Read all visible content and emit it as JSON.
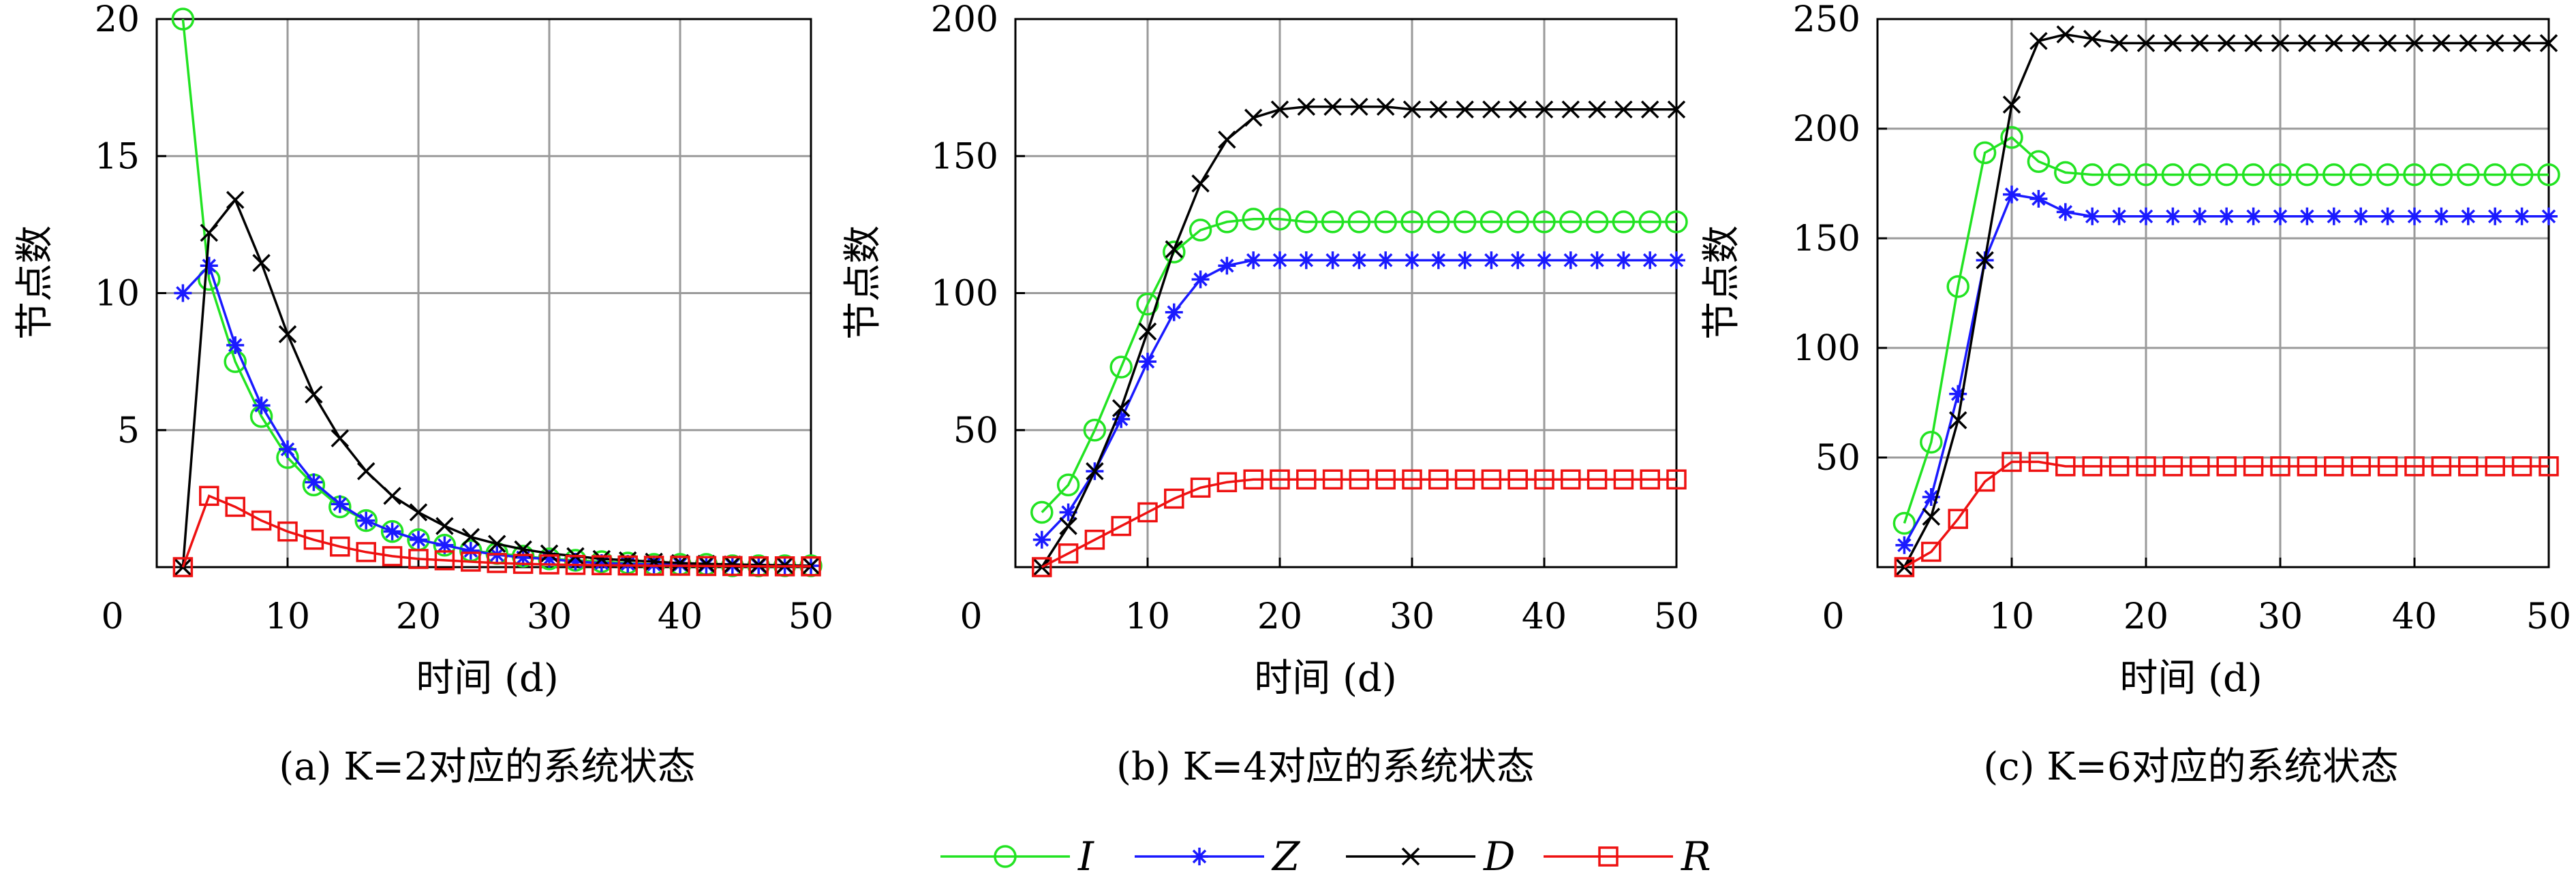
{
  "legend": [
    {
      "label": "I",
      "color": "#22e322",
      "marker": "circle"
    },
    {
      "label": "Z",
      "color": "#1a1aff",
      "marker": "asterisk"
    },
    {
      "label": "D",
      "color": "#000000",
      "marker": "x"
    },
    {
      "label": "R",
      "color": "#ee1111",
      "marker": "square"
    }
  ],
  "chart_data": [
    {
      "type": "line",
      "caption": "(a) K=2对应的系统状态",
      "xlabel": "时间 (d)",
      "ylabel": "节点数",
      "xlim": [
        0,
        50
      ],
      "ylim": [
        0,
        20
      ],
      "xticks": [
        "0",
        "10",
        "20",
        "30",
        "40",
        "50"
      ],
      "yticks": [
        "5",
        "10",
        "15",
        "20"
      ],
      "grid": true,
      "x": [
        2,
        4,
        6,
        8,
        10,
        12,
        14,
        16,
        18,
        20,
        22,
        24,
        26,
        28,
        30,
        32,
        34,
        36,
        38,
        40,
        42,
        44,
        46,
        48,
        50
      ],
      "series": [
        {
          "name": "I",
          "values": [
            20,
            10.5,
            7.5,
            5.5,
            4.0,
            3.0,
            2.2,
            1.7,
            1.3,
            1.0,
            0.8,
            0.6,
            0.5,
            0.4,
            0.3,
            0.25,
            0.2,
            0.15,
            0.1,
            0.1,
            0.1,
            0.05,
            0.05,
            0.05,
            0.05
          ]
        },
        {
          "name": "Z",
          "values": [
            10,
            11,
            8.1,
            5.9,
            4.3,
            3.1,
            2.3,
            1.7,
            1.3,
            1.0,
            0.8,
            0.6,
            0.45,
            0.35,
            0.3,
            0.2,
            0.15,
            0.12,
            0.1,
            0.1,
            0.08,
            0.06,
            0.05,
            0.05,
            0.05
          ]
        },
        {
          "name": "D",
          "values": [
            0,
            12.2,
            13.4,
            11.1,
            8.5,
            6.3,
            4.7,
            3.5,
            2.6,
            2.0,
            1.5,
            1.1,
            0.85,
            0.65,
            0.5,
            0.4,
            0.3,
            0.25,
            0.2,
            0.15,
            0.12,
            0.1,
            0.08,
            0.07,
            0.05
          ]
        },
        {
          "name": "R",
          "values": [
            0,
            2.6,
            2.2,
            1.7,
            1.3,
            1.0,
            0.75,
            0.55,
            0.4,
            0.3,
            0.25,
            0.2,
            0.15,
            0.12,
            0.1,
            0.08,
            0.07,
            0.06,
            0.05,
            0.05,
            0.04,
            0.04,
            0.03,
            0.03,
            0.03
          ]
        }
      ]
    },
    {
      "type": "line",
      "caption": "(b) K=4对应的系统状态",
      "xlabel": "时间 (d)",
      "ylabel": "节点数",
      "xlim": [
        0,
        50
      ],
      "ylim": [
        0,
        200
      ],
      "xticks": [
        "0",
        "10",
        "20",
        "30",
        "40",
        "50"
      ],
      "yticks": [
        "50",
        "100",
        "150",
        "200"
      ],
      "grid": true,
      "x": [
        2,
        4,
        6,
        8,
        10,
        12,
        14,
        16,
        18,
        20,
        22,
        24,
        26,
        28,
        30,
        32,
        34,
        36,
        38,
        40,
        42,
        44,
        46,
        48,
        50
      ],
      "series": [
        {
          "name": "I",
          "values": [
            20,
            30,
            50,
            73,
            96,
            115,
            123,
            126,
            127,
            127,
            126,
            126,
            126,
            126,
            126,
            126,
            126,
            126,
            126,
            126,
            126,
            126,
            126,
            126,
            126
          ]
        },
        {
          "name": "Z",
          "values": [
            10,
            20,
            35,
            54,
            75,
            93,
            105,
            110,
            112,
            112,
            112,
            112,
            112,
            112,
            112,
            112,
            112,
            112,
            112,
            112,
            112,
            112,
            112,
            112,
            112
          ]
        },
        {
          "name": "D",
          "values": [
            0,
            15,
            35,
            58,
            86,
            116,
            140,
            156,
            164,
            167,
            168,
            168,
            168,
            168,
            167,
            167,
            167,
            167,
            167,
            167,
            167,
            167,
            167,
            167,
            167
          ]
        },
        {
          "name": "R",
          "values": [
            0,
            5,
            10,
            15,
            20,
            25,
            29,
            31,
            32,
            32,
            32,
            32,
            32,
            32,
            32,
            32,
            32,
            32,
            32,
            32,
            32,
            32,
            32,
            32,
            32
          ]
        }
      ]
    },
    {
      "type": "line",
      "caption": "(c) K=6对应的系统状态",
      "xlabel": "时间 (d)",
      "ylabel": "节点数",
      "xlim": [
        0,
        50
      ],
      "ylim": [
        0,
        250
      ],
      "xticks": [
        "0",
        "10",
        "20",
        "30",
        "40",
        "50"
      ],
      "yticks": [
        "50",
        "100",
        "150",
        "200",
        "250"
      ],
      "grid": true,
      "x": [
        2,
        4,
        6,
        8,
        10,
        12,
        14,
        16,
        18,
        20,
        22,
        24,
        26,
        28,
        30,
        32,
        34,
        36,
        38,
        40,
        42,
        44,
        46,
        48,
        50
      ],
      "series": [
        {
          "name": "I",
          "values": [
            20,
            57,
            128,
            189,
            196,
            185,
            180,
            179,
            179,
            179,
            179,
            179,
            179,
            179,
            179,
            179,
            179,
            179,
            179,
            179,
            179,
            179,
            179,
            179,
            179
          ]
        },
        {
          "name": "Z",
          "values": [
            10,
            32,
            79,
            140,
            170,
            168,
            162,
            160,
            160,
            160,
            160,
            160,
            160,
            160,
            160,
            160,
            160,
            160,
            160,
            160,
            160,
            160,
            160,
            160,
            160
          ]
        },
        {
          "name": "D",
          "values": [
            0,
            23,
            67,
            140,
            211,
            240,
            243,
            241,
            239,
            239,
            239,
            239,
            239,
            239,
            239,
            239,
            239,
            239,
            239,
            239,
            239,
            239,
            239,
            239,
            239
          ]
        },
        {
          "name": "R",
          "values": [
            0,
            7,
            22,
            39,
            48,
            48,
            46,
            46,
            46,
            46,
            46,
            46,
            46,
            46,
            46,
            46,
            46,
            46,
            46,
            46,
            46,
            46,
            46,
            46,
            46
          ]
        }
      ]
    }
  ]
}
